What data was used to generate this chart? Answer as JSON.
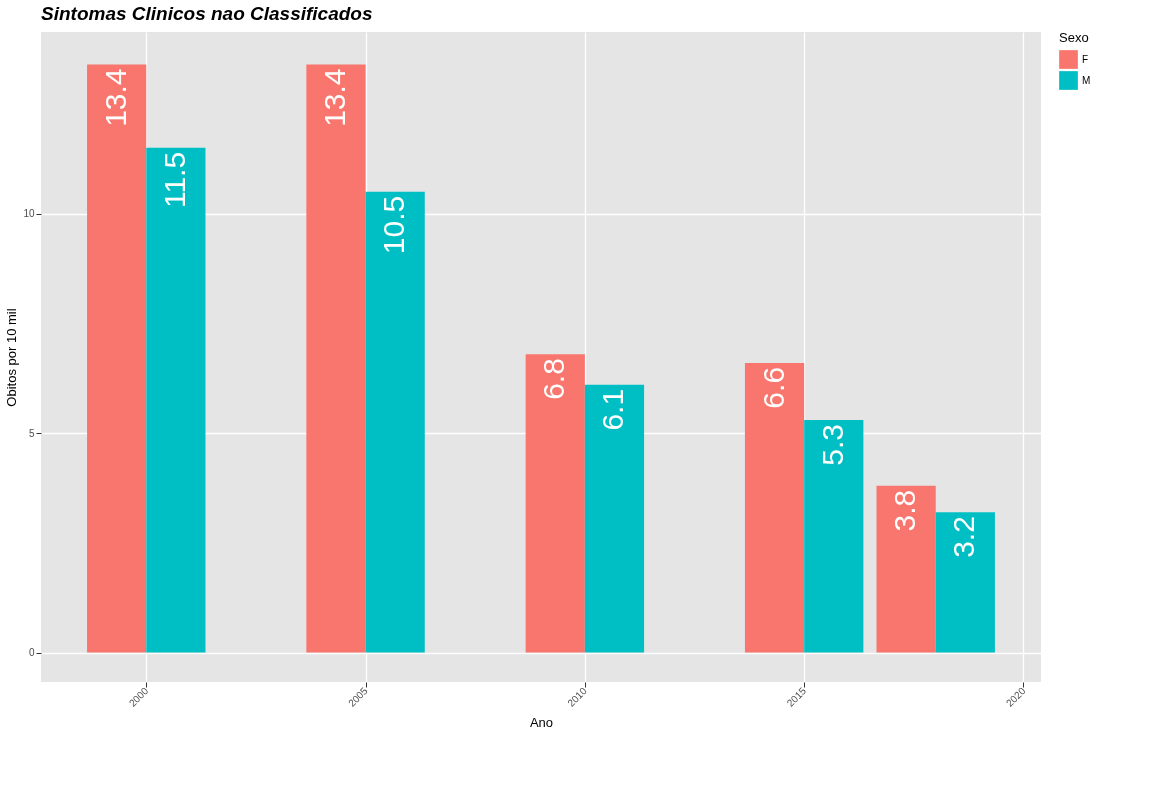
{
  "chart_data": {
    "type": "bar",
    "title": "Sintomas Clinicos nao Classificados",
    "xlabel": "Ano",
    "ylabel": "Obitos por 10 mil",
    "legend_title": "Sexo",
    "x": [
      2000,
      2005,
      2010,
      2015,
      2018
    ],
    "series": [
      {
        "name": "F",
        "color": "#f8766d",
        "values": [
          13.4,
          13.4,
          6.8,
          6.6,
          3.8
        ]
      },
      {
        "name": "M",
        "color": "#00bfc4",
        "values": [
          11.5,
          10.5,
          6.1,
          5.3,
          3.2
        ]
      }
    ],
    "xlim": [
      1997.6,
      2020.4
    ],
    "xticks": [
      2000,
      2005,
      2010,
      2015,
      2020
    ],
    "ylim": [
      -0.67,
      14.14
    ],
    "yticks": [
      0,
      5,
      10
    ],
    "data_labels": true,
    "grid": true,
    "legend": "right"
  }
}
